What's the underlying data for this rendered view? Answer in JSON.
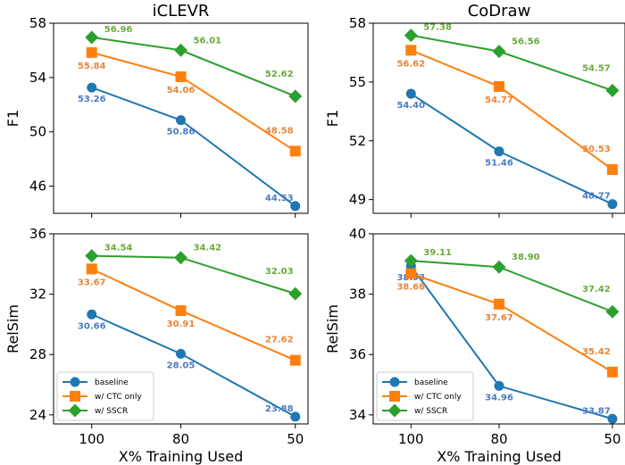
{
  "chart_data": [
    {
      "type": "line",
      "title": "iCLEVR",
      "xlabel": "",
      "ylabel": "F1",
      "categories": [
        "100",
        "80",
        "50"
      ],
      "ylim": [
        44,
        58
      ],
      "yticks": [
        46,
        50,
        54,
        58
      ],
      "legend": null,
      "series": [
        {
          "name": "baseline",
          "color": "#1f77b4",
          "marker": "circle",
          "values": [
            53.26,
            50.86,
            44.53
          ],
          "labels": [
            "53.26",
            "50.86",
            "44.53"
          ]
        },
        {
          "name": "w/ CTC only",
          "color": "#ff7f0e",
          "marker": "square",
          "values": [
            55.84,
            54.06,
            48.58
          ],
          "labels": [
            "55.84",
            "54.06",
            "48.58"
          ]
        },
        {
          "name": "w/ SSCR",
          "color": "#2ca02c",
          "marker": "diamond",
          "values": [
            56.96,
            56.01,
            52.62
          ],
          "labels": [
            "56.96",
            "56.01",
            "52.62"
          ]
        }
      ]
    },
    {
      "type": "line",
      "title": "CoDraw",
      "xlabel": "",
      "ylabel": "F1",
      "categories": [
        "100",
        "80",
        "50"
      ],
      "ylim": [
        48.3,
        58
      ],
      "yticks": [
        49,
        52,
        55,
        58
      ],
      "legend": null,
      "series": [
        {
          "name": "baseline",
          "color": "#1f77b4",
          "marker": "circle",
          "values": [
            54.4,
            51.46,
            48.77
          ],
          "labels": [
            "54.40",
            "51.46",
            "48.77"
          ]
        },
        {
          "name": "w/ CTC only",
          "color": "#ff7f0e",
          "marker": "square",
          "values": [
            56.62,
            54.77,
            50.53
          ],
          "labels": [
            "56.62",
            "54.77",
            "50.53"
          ]
        },
        {
          "name": "w/ SSCR",
          "color": "#2ca02c",
          "marker": "diamond",
          "values": [
            57.38,
            56.56,
            54.57
          ],
          "labels": [
            "57.38",
            "56.56",
            "54.57"
          ]
        }
      ]
    },
    {
      "type": "line",
      "title": "",
      "xlabel": "X% Training Used",
      "ylabel": "RelSim",
      "categories": [
        "100",
        "80",
        "50"
      ],
      "ylim": [
        23.4,
        36
      ],
      "yticks": [
        24,
        28,
        32,
        36
      ],
      "legend": "lower-left",
      "series": [
        {
          "name": "baseline",
          "color": "#1f77b4",
          "marker": "circle",
          "values": [
            30.66,
            28.05,
            23.88
          ],
          "labels": [
            "30.66",
            "28.05",
            "23.88"
          ]
        },
        {
          "name": "w/ CTC only",
          "color": "#ff7f0e",
          "marker": "square",
          "values": [
            33.67,
            30.91,
            27.62
          ],
          "labels": [
            "33.67",
            "30.91",
            "27.62"
          ]
        },
        {
          "name": "w/ SSCR",
          "color": "#2ca02c",
          "marker": "diamond",
          "values": [
            34.54,
            34.42,
            32.03
          ],
          "labels": [
            "34.54",
            "34.42",
            "32.03"
          ]
        }
      ]
    },
    {
      "type": "line",
      "title": "",
      "xlabel": "X% Training Used",
      "ylabel": "RelSim",
      "categories": [
        "100",
        "80",
        "50"
      ],
      "ylim": [
        33.7,
        40
      ],
      "yticks": [
        34,
        36,
        38,
        40
      ],
      "legend": "lower-left",
      "series": [
        {
          "name": "baseline",
          "color": "#1f77b4",
          "marker": "circle",
          "values": [
            38.93,
            34.96,
            33.87
          ],
          "labels": [
            "38.93",
            "34.96",
            "33.87"
          ]
        },
        {
          "name": "w/ CTC only",
          "color": "#ff7f0e",
          "marker": "square",
          "values": [
            38.68,
            37.67,
            35.42
          ],
          "labels": [
            "38.68",
            "37.67",
            "35.42"
          ]
        },
        {
          "name": "w/ SSCR",
          "color": "#2ca02c",
          "marker": "diamond",
          "values": [
            39.11,
            38.9,
            37.42
          ],
          "labels": [
            "39.11",
            "38.90",
            "37.42"
          ]
        }
      ]
    }
  ]
}
